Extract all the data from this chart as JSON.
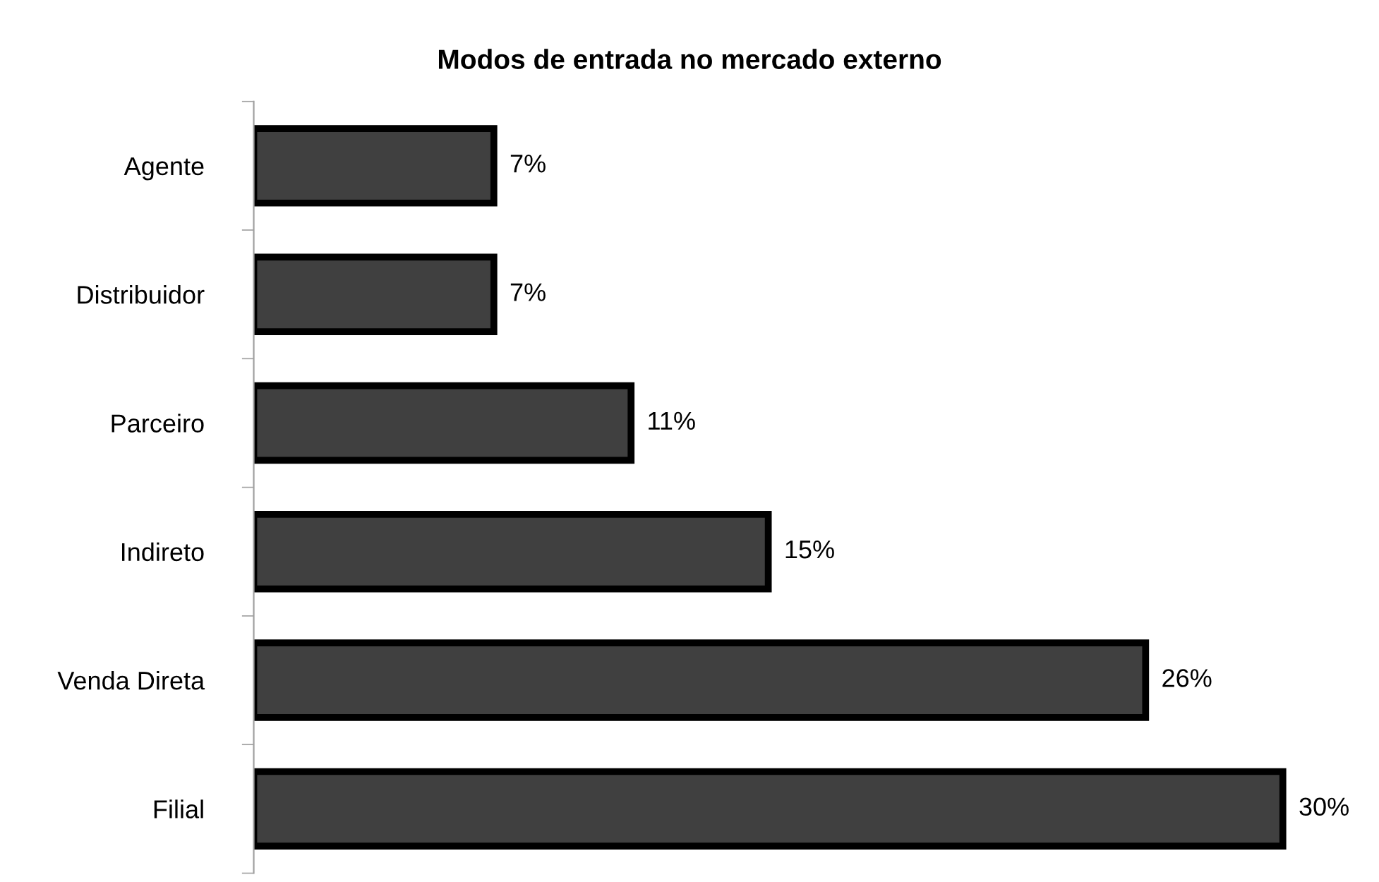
{
  "chart_data": {
    "type": "bar",
    "orientation": "horizontal",
    "title": "Modos de entrada no mercado externo",
    "categories": [
      "Agente",
      "Distribuidor",
      "Parceiro",
      "Indireto",
      "Venda Direta",
      "Filial"
    ],
    "values": [
      7,
      7,
      11,
      15,
      26,
      30
    ],
    "value_labels": [
      "7%",
      "7%",
      "11%",
      "15%",
      "26%",
      "30%"
    ],
    "color": "#404040",
    "grid": false,
    "legend": false
  }
}
